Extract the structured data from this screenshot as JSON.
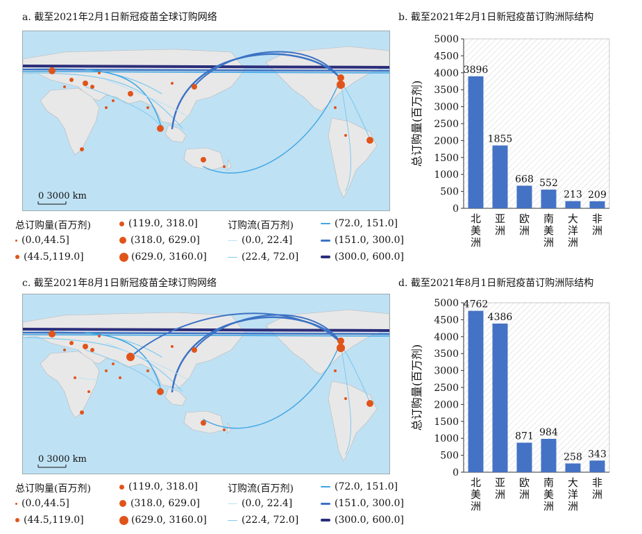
{
  "panels": {
    "a": {
      "title": "a. 截至2021年2月1日新冠疫苗全球订购网络",
      "scale_label": "0    3000 km"
    },
    "b": {
      "title": "b. 截至2021年2月1日新冠疫苗订购洲际结构"
    },
    "c": {
      "title": "c. 截至2021年8月1日新冠疫苗全球订购网络",
      "scale_label": "0    3000 km"
    },
    "d": {
      "title": "d. 截至2021年8月1日新冠疫苗订购洲际结构"
    }
  },
  "legend": {
    "volume_title": "总订购量(百万剂)",
    "volume_classes": [
      "(0.0,44.5]",
      "(44.5,119.0]",
      "(119.0, 318.0]",
      "(318.0, 629.0]",
      "(629.0, 3160.0]"
    ],
    "flow_title": "订购流(百万剂)",
    "flow_classes": [
      "(0.0, 22.4]",
      "(22.4, 72.0]",
      "(72.0, 151.0]",
      "(151.0, 300.0]",
      "(300.0, 600.0]"
    ],
    "colors": {
      "node": "#e0541a",
      "flow1": "#b9e2f5",
      "flow2": "#7fcaf0",
      "flow3": "#3fa6e3",
      "flow4": "#3c72c4",
      "flow5": "#2b2d7a",
      "ocean": "#bfe1f4",
      "land": "#e8e8e8",
      "bar": "#4472c4"
    }
  },
  "chart_data": [
    {
      "type": "bar",
      "title": "b. 截至2021年2月1日新冠疫苗订购洲际结构",
      "ylabel": "总订购量(百万剂)",
      "xlabel": "",
      "categories": [
        "北美洲",
        "亚洲",
        "欧洲",
        "南美洲",
        "大洋洲",
        "非洲"
      ],
      "values": [
        3896,
        1855,
        668,
        552,
        213,
        209
      ],
      "ylim": [
        0,
        5000
      ],
      "yticks": [
        0,
        500,
        1000,
        1500,
        2000,
        2500,
        3000,
        3500,
        4000,
        4500,
        5000
      ],
      "background": "hatched"
    },
    {
      "type": "bar",
      "title": "d. 截至2021年8月1日新冠疫苗订购洲际结构",
      "ylabel": "总订购量(百万剂)",
      "xlabel": "",
      "categories": [
        "北美洲",
        "亚洲",
        "欧洲",
        "南美洲",
        "大洋洲",
        "非洲"
      ],
      "values": [
        4762,
        4386,
        871,
        984,
        258,
        343
      ],
      "ylim": [
        0,
        5000
      ],
      "yticks": [
        0,
        500,
        1000,
        1500,
        2000,
        2500,
        3000,
        3500,
        4000,
        4500,
        5000
      ],
      "background": "hatched"
    }
  ]
}
